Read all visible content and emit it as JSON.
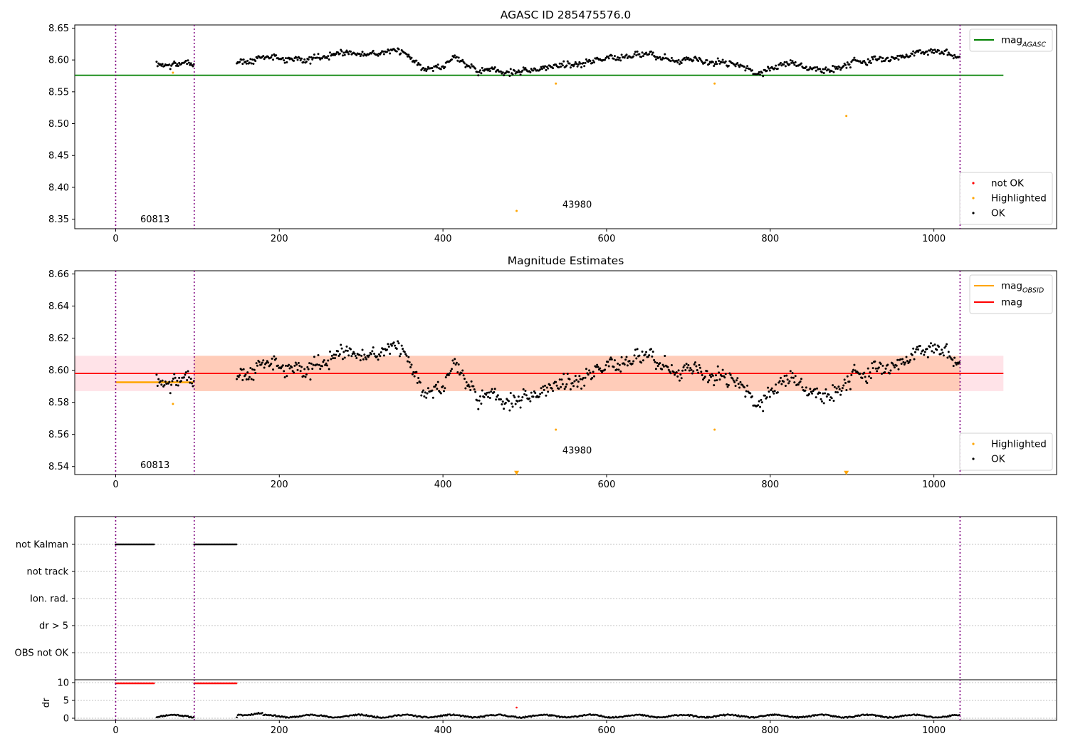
{
  "chart_data": [
    {
      "id": "agasc",
      "type": "scatter",
      "title": "AGASC ID 285475576.0",
      "xlim": [
        -50,
        1150
      ],
      "ylim": [
        8.335,
        8.655
      ],
      "xticks": [
        0,
        200,
        400,
        600,
        800,
        1000
      ],
      "yticks": [
        8.35,
        8.4,
        8.45,
        8.5,
        8.55,
        8.6,
        8.65
      ],
      "ytick_labels": [
        "8.35",
        "8.40",
        "8.45",
        "8.50",
        "8.55",
        "8.60",
        "8.65"
      ],
      "vlines": [
        0,
        96,
        1032
      ],
      "obsid_labels": [
        {
          "text": "60813",
          "x": 48,
          "y": 8.345
        },
        {
          "text": "43980",
          "x": 564,
          "y": 8.368
        }
      ],
      "lines": [
        {
          "name": "mag_AGASC",
          "label_main": "mag",
          "label_sub": "AGASC",
          "y": 8.576,
          "x": [
            -50,
            1085
          ],
          "color": "#008000"
        }
      ],
      "series": [
        {
          "name": "not OK",
          "color": "#ff0000",
          "points": []
        },
        {
          "name": "Highlighted",
          "color": "#ffa500",
          "points": [
            [
              70,
              8.58
            ],
            [
              490,
              8.363
            ],
            [
              538,
              8.563
            ],
            [
              732,
              8.563
            ],
            [
              893,
              8.512
            ]
          ]
        },
        {
          "name": "OK",
          "color": "#000000",
          "generator": {
            "segments": [
              [
                50,
                96
              ],
              [
                148,
                1032
              ]
            ],
            "step": 1.2,
            "mean_anchors": [
              [
                50,
                8.594
              ],
              [
                96,
                8.594
              ],
              [
                150,
                8.598
              ],
              [
                200,
                8.605
              ],
              [
                240,
                8.6
              ],
              [
                280,
                8.612
              ],
              [
                320,
                8.61
              ],
              [
                350,
                8.613
              ],
              [
                375,
                8.59
              ],
              [
                400,
                8.588
              ],
              [
                415,
                8.607
              ],
              [
                440,
                8.585
              ],
              [
                470,
                8.583
              ],
              [
                500,
                8.581
              ],
              [
                540,
                8.59
              ],
              [
                600,
                8.602
              ],
              [
                640,
                8.61
              ],
              [
                680,
                8.601
              ],
              [
                720,
                8.598
              ],
              [
                760,
                8.592
              ],
              [
                785,
                8.578
              ],
              [
                800,
                8.588
              ],
              [
                820,
                8.592
              ],
              [
                850,
                8.588
              ],
              [
                880,
                8.582
              ],
              [
                900,
                8.598
              ],
              [
                950,
                8.602
              ],
              [
                1000,
                8.612
              ],
              [
                1032,
                8.604
              ]
            ],
            "noise": 0.0045,
            "seed": 7
          }
        }
      ],
      "legend_lines": {
        "location": "upper right",
        "entries": [
          "mag_AGASC"
        ]
      },
      "legend_points": {
        "location": "lower right",
        "entries": [
          "not OK",
          "Highlighted",
          "OK"
        ]
      }
    },
    {
      "id": "estimates",
      "type": "scatter",
      "title": "Magnitude Estimates",
      "xlim": [
        -50,
        1150
      ],
      "ylim": [
        8.535,
        8.662
      ],
      "xticks": [
        0,
        200,
        400,
        600,
        800,
        1000
      ],
      "yticks": [
        8.54,
        8.56,
        8.58,
        8.6,
        8.62,
        8.64,
        8.66
      ],
      "ytick_labels": [
        "8.54",
        "8.56",
        "8.58",
        "8.60",
        "8.62",
        "8.64",
        "8.66"
      ],
      "vlines": [
        0,
        96,
        1032
      ],
      "obsid_labels": [
        {
          "text": "60813",
          "x": 48,
          "y": 8.539
        },
        {
          "text": "43980",
          "x": 564,
          "y": 8.548
        }
      ],
      "bands": [
        {
          "x": [
            -50,
            1085
          ],
          "y": [
            8.587,
            8.609
          ],
          "color": "#ffc0cb",
          "opacity": 0.45
        },
        {
          "x": [
            96,
            1032
          ],
          "y": [
            8.587,
            8.609
          ],
          "color": "#ffa060",
          "opacity": 0.35
        }
      ],
      "lines": [
        {
          "name": "mag_OBSID",
          "label_main": "mag",
          "label_sub": "OBSID",
          "y": 8.5925,
          "x": [
            0,
            96
          ],
          "color": "#ffa500",
          "width": 2.5
        },
        {
          "name": "mag",
          "label_main": "mag",
          "label_sub": "",
          "y": 8.598,
          "x": [
            -50,
            1085
          ],
          "color": "#ff0000",
          "width": 1.8
        }
      ],
      "series": [
        {
          "name": "Highlighted",
          "color": "#ffa500",
          "points": [
            [
              70,
              8.579
            ],
            [
              538,
              8.563
            ],
            [
              732,
              8.563
            ]
          ]
        },
        {
          "name": "Highlighted (off-scale)",
          "color": "#ffa500",
          "marker": "triangle-down",
          "points": [
            [
              490,
              8.536
            ],
            [
              893,
              8.536
            ]
          ]
        },
        {
          "name": "OK",
          "color": "#000000",
          "generator": {
            "segments": [
              [
                50,
                96
              ],
              [
                148,
                1032
              ]
            ],
            "step": 1.2,
            "mean_anchors": [
              [
                50,
                8.594
              ],
              [
                96,
                8.594
              ],
              [
                150,
                8.598
              ],
              [
                200,
                8.605
              ],
              [
                240,
                8.6
              ],
              [
                280,
                8.612
              ],
              [
                320,
                8.61
              ],
              [
                350,
                8.613
              ],
              [
                375,
                8.59
              ],
              [
                400,
                8.588
              ],
              [
                415,
                8.607
              ],
              [
                440,
                8.585
              ],
              [
                470,
                8.583
              ],
              [
                500,
                8.581
              ],
              [
                540,
                8.59
              ],
              [
                600,
                8.602
              ],
              [
                640,
                8.61
              ],
              [
                680,
                8.601
              ],
              [
                720,
                8.598
              ],
              [
                760,
                8.592
              ],
              [
                785,
                8.578
              ],
              [
                800,
                8.588
              ],
              [
                820,
                8.592
              ],
              [
                850,
                8.588
              ],
              [
                880,
                8.582
              ],
              [
                900,
                8.598
              ],
              [
                950,
                8.602
              ],
              [
                1000,
                8.612
              ],
              [
                1032,
                8.604
              ]
            ],
            "noise": 0.0045,
            "seed": 7
          }
        }
      ],
      "legend_lines": {
        "location": "upper right",
        "entries": [
          "mag_OBSID",
          "mag"
        ]
      },
      "legend_points": {
        "location": "lower right",
        "entries": [
          "Highlighted",
          "OK"
        ]
      }
    },
    {
      "id": "flags",
      "type": "scatter",
      "title": "",
      "xlim": [
        -50,
        1150
      ],
      "categories": [
        "not Kalman",
        "not track",
        "Ion. rad.",
        "dr > 5",
        "OBS not OK"
      ],
      "vlines": [
        0,
        96,
        1032
      ],
      "series": [
        {
          "name": "not Kalman",
          "category": "not Kalman",
          "color": "#000000",
          "ranges": [
            [
              0,
              48
            ],
            [
              96,
              148
            ]
          ]
        }
      ]
    },
    {
      "id": "dr",
      "type": "scatter",
      "title": "",
      "ylabel": "dr",
      "xlim": [
        -50,
        1150
      ],
      "ylim": [
        -0.6,
        10.8
      ],
      "xticks": [
        0,
        200,
        400,
        600,
        800,
        1000
      ],
      "yticks": [
        0,
        5,
        10
      ],
      "ytick_labels": [
        "0",
        "5",
        "10"
      ],
      "vlines": [
        0,
        96,
        1032
      ],
      "series": [
        {
          "name": "dr clipped (not Kalman)",
          "color": "#ff0000",
          "value": 9.8,
          "ranges": [
            [
              0,
              48
            ],
            [
              96,
              148
            ]
          ]
        },
        {
          "name": "dr outlier",
          "color": "#ff0000",
          "points": [
            [
              490,
              3.0
            ]
          ]
        },
        {
          "name": "dr",
          "color": "#000000",
          "segments": [
            [
              50,
              96
            ],
            [
              148,
              1032
            ]
          ],
          "base": 0.6,
          "noise": 0.35
        }
      ]
    }
  ]
}
